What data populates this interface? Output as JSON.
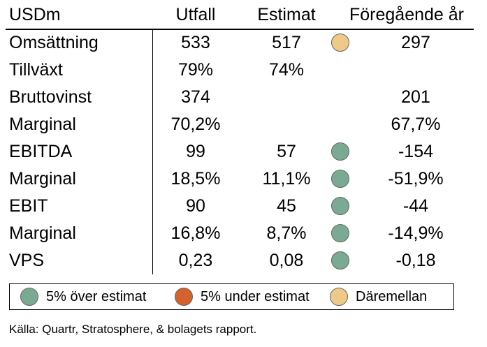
{
  "header": {
    "label": "USDm",
    "col_utfall": "Utfall",
    "col_estimat": "Estimat",
    "col_prev": "Föregående år"
  },
  "rows": [
    {
      "label": "Omsättning",
      "utfall": "533",
      "estimat": "517",
      "indicator": "between",
      "prev": "297"
    },
    {
      "label": "Tillväxt",
      "utfall": "79%",
      "estimat": "74%",
      "indicator": "",
      "prev": ""
    },
    {
      "label": "Bruttovinst",
      "utfall": "374",
      "estimat": "",
      "indicator": "",
      "prev": "201"
    },
    {
      "label": "Marginal",
      "utfall": "70,2%",
      "estimat": "",
      "indicator": "",
      "prev": "67,7%"
    },
    {
      "label": "EBITDA",
      "utfall": "99",
      "estimat": "57",
      "indicator": "over",
      "prev": "-154"
    },
    {
      "label": "Marginal",
      "utfall": "18,5%",
      "estimat": "11,1%",
      "indicator": "over",
      "prev": "-51,9%"
    },
    {
      "label": "EBIT",
      "utfall": "90",
      "estimat": "45",
      "indicator": "over",
      "prev": "-44"
    },
    {
      "label": "Marginal",
      "utfall": "16,8%",
      "estimat": "8,7%",
      "indicator": "over",
      "prev": "-14,9%"
    },
    {
      "label": "VPS",
      "utfall": "0,23",
      "estimat": "0,08",
      "indicator": "over",
      "prev": "-0,18"
    }
  ],
  "colors": {
    "over": "#7aaa92",
    "under": "#d4622f",
    "between": "#efc987"
  },
  "legend": [
    {
      "key": "over",
      "label": "5% över estimat"
    },
    {
      "key": "under",
      "label": "5% under estimat"
    },
    {
      "key": "between",
      "label": "Däremellan"
    }
  ],
  "source": "Källa: Quartr, Stratosphere, & bolagets rapport."
}
